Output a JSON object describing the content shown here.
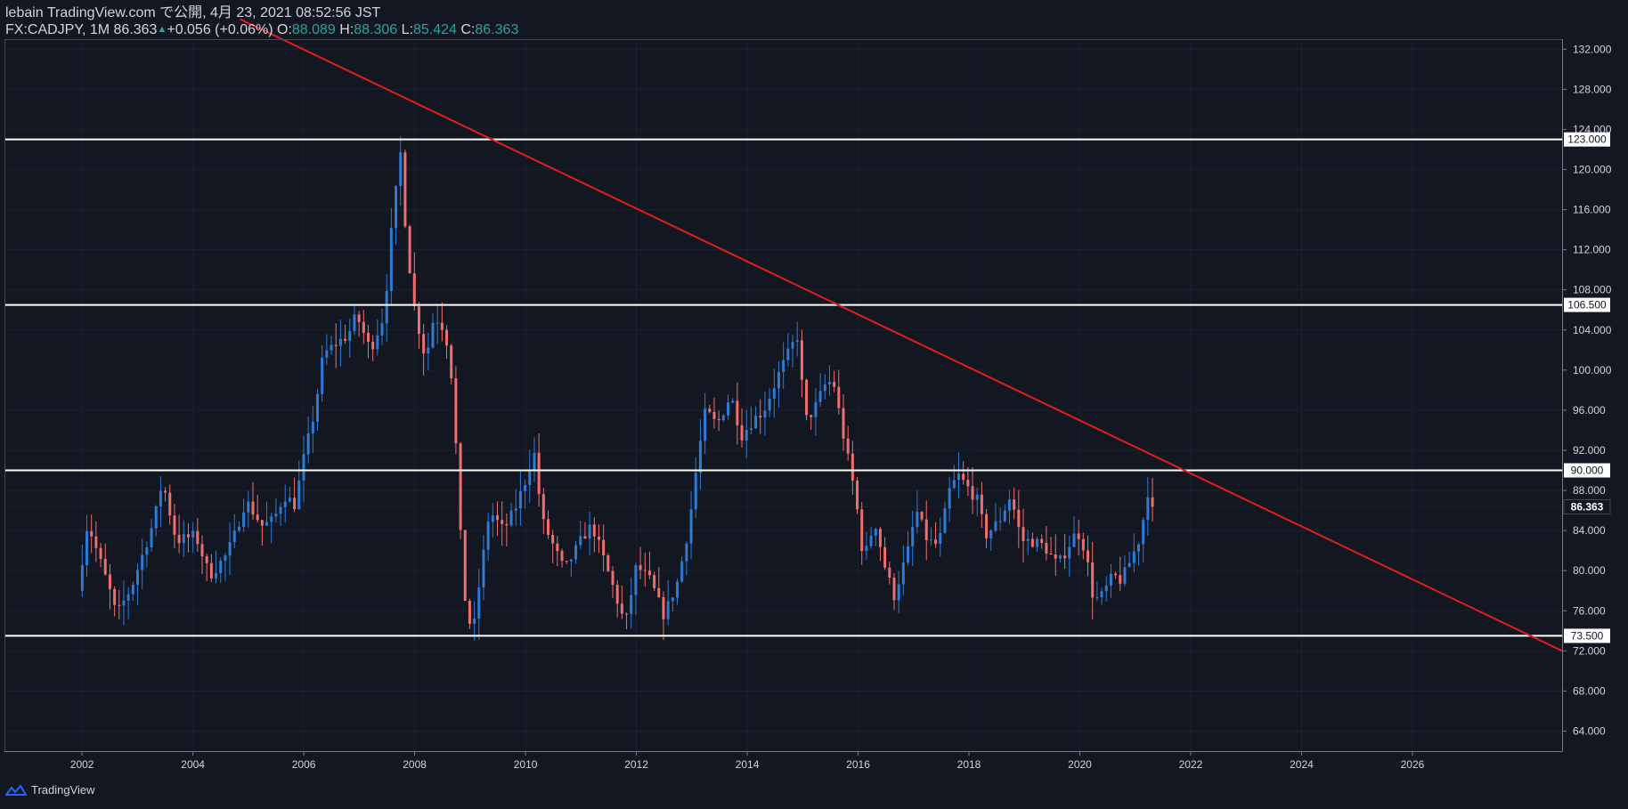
{
  "header": {
    "line1": "lebain TradingView.com で公開, 4月 23, 2021 08:52:56 JST",
    "symbol": "FX:CADJPY, 1M 86.363",
    "change_arrow": "▲",
    "change": "+0.056 (+0.06%)",
    "open_label": "O:",
    "open": "88.089",
    "high_label": "H:",
    "high": "88.306",
    "low_label": "L:",
    "low": "85.424",
    "close_label": "C:",
    "close": "86.363"
  },
  "footer": {
    "brand": "TradingView",
    "logo_icon": "tradingview-logo-icon"
  },
  "colors": {
    "background": "#131722",
    "up": "#2e7bd6",
    "down": "#ef6e6e",
    "trendline": "#e01e1e",
    "level": "#ffffff",
    "text": "#d1d4dc",
    "ohlc_value": "#26a69a"
  },
  "chart_data": {
    "type": "candlestick",
    "symbol": "FX:CADJPY",
    "timeframe": "1M",
    "x_range": [
      2000.6,
      2028.7
    ],
    "ylim": [
      62.0,
      133.0
    ],
    "x_ticks": [
      "2002",
      "2004",
      "2006",
      "2008",
      "2010",
      "2012",
      "2014",
      "2016",
      "2018",
      "2020",
      "2022",
      "2024",
      "2026"
    ],
    "y_ticks": [
      "132.000",
      "128.000",
      "124.000",
      "120.000",
      "116.000",
      "112.000",
      "108.000",
      "104.000",
      "100.000",
      "96.000",
      "92.000",
      "88.000",
      "84.000",
      "80.000",
      "76.000",
      "72.000",
      "68.000",
      "64.000"
    ],
    "horizontal_levels": [
      {
        "value": 123.0,
        "label": "123.000"
      },
      {
        "value": 106.5,
        "label": "106.500"
      },
      {
        "value": 90.0,
        "label": "90.000"
      },
      {
        "value": 73.5,
        "label": "73.500"
      }
    ],
    "last_price": {
      "value": 86.363,
      "label": "86.363"
    },
    "trendline": {
      "from": {
        "x": 2004.85,
        "y": 135.0
      },
      "to": {
        "x": 2028.7,
        "y": 72.0
      }
    },
    "anchors": [
      [
        2001.92,
        78.0
      ],
      [
        2002.1,
        84.8
      ],
      [
        2002.5,
        78.0
      ],
      [
        2002.62,
        75.5
      ],
      [
        2002.9,
        78.5
      ],
      [
        2003.3,
        85.0
      ],
      [
        2003.45,
        89.0
      ],
      [
        2003.7,
        83.0
      ],
      [
        2004.05,
        83.5
      ],
      [
        2004.3,
        79.5
      ],
      [
        2004.6,
        81.5
      ],
      [
        2004.75,
        83.5
      ],
      [
        2004.95,
        87.0
      ],
      [
        2005.25,
        84.5
      ],
      [
        2005.45,
        85.0
      ],
      [
        2005.65,
        87.5
      ],
      [
        2005.85,
        86.5
      ],
      [
        2005.95,
        90.0
      ],
      [
        2006.2,
        96.0
      ],
      [
        2006.35,
        101.5
      ],
      [
        2006.55,
        102.5
      ],
      [
        2006.8,
        103.5
      ],
      [
        2006.95,
        105.5
      ],
      [
        2007.2,
        102.0
      ],
      [
        2007.45,
        105.5
      ],
      [
        2007.6,
        115.0
      ],
      [
        2007.75,
        121.8
      ],
      [
        2007.85,
        113.0
      ],
      [
        2008.0,
        106.0
      ],
      [
        2008.2,
        101.0
      ],
      [
        2008.35,
        105.5
      ],
      [
        2008.55,
        104.0
      ],
      [
        2008.7,
        98.0
      ],
      [
        2008.8,
        85.5
      ],
      [
        2008.92,
        76.5
      ],
      [
        2009.05,
        73.5
      ],
      [
        2009.15,
        78.0
      ],
      [
        2009.35,
        86.0
      ],
      [
        2009.6,
        84.0
      ],
      [
        2009.8,
        86.0
      ],
      [
        2010.0,
        89.0
      ],
      [
        2010.15,
        92.0
      ],
      [
        2010.3,
        85.0
      ],
      [
        2010.5,
        82.5
      ],
      [
        2010.7,
        80.0
      ],
      [
        2010.9,
        82.0
      ],
      [
        2011.05,
        83.5
      ],
      [
        2011.2,
        84.5
      ],
      [
        2011.45,
        80.5
      ],
      [
        2011.6,
        78.0
      ],
      [
        2011.8,
        74.5
      ],
      [
        2012.0,
        80.5
      ],
      [
        2012.25,
        79.0
      ],
      [
        2012.5,
        75.5
      ],
      [
        2012.75,
        79.0
      ],
      [
        2012.95,
        84.5
      ],
      [
        2013.1,
        91.0
      ],
      [
        2013.25,
        96.0
      ],
      [
        2013.45,
        94.5
      ],
      [
        2013.7,
        97.5
      ],
      [
        2013.9,
        93.5
      ],
      [
        2014.1,
        95.0
      ],
      [
        2014.3,
        96.0
      ],
      [
        2014.6,
        100.0
      ],
      [
        2014.9,
        103.5
      ],
      [
        2015.05,
        95.0
      ],
      [
        2015.2,
        96.0
      ],
      [
        2015.4,
        98.5
      ],
      [
        2015.55,
        99.0
      ],
      [
        2015.75,
        93.0
      ],
      [
        2015.95,
        87.5
      ],
      [
        2016.1,
        81.0
      ],
      [
        2016.3,
        85.0
      ],
      [
        2016.5,
        80.0
      ],
      [
        2016.65,
        77.5
      ],
      [
        2016.9,
        82.0
      ],
      [
        2017.05,
        86.0
      ],
      [
        2017.25,
        83.0
      ],
      [
        2017.45,
        82.5
      ],
      [
        2017.65,
        88.0
      ],
      [
        2017.8,
        89.5
      ],
      [
        2017.95,
        88.5
      ],
      [
        2018.15,
        87.0
      ],
      [
        2018.3,
        83.5
      ],
      [
        2018.55,
        85.0
      ],
      [
        2018.75,
        87.5
      ],
      [
        2018.95,
        83.0
      ],
      [
        2019.1,
        83.0
      ],
      [
        2019.35,
        82.5
      ],
      [
        2019.6,
        80.5
      ],
      [
        2019.8,
        82.5
      ],
      [
        2019.95,
        84.0
      ],
      [
        2020.1,
        82.0
      ],
      [
        2020.25,
        77.0
      ],
      [
        2020.4,
        77.5
      ],
      [
        2020.6,
        79.5
      ],
      [
        2020.75,
        79.0
      ],
      [
        2020.95,
        81.5
      ],
      [
        2021.1,
        83.5
      ],
      [
        2021.22,
        88.0
      ],
      [
        2021.31,
        86.363
      ]
    ]
  }
}
